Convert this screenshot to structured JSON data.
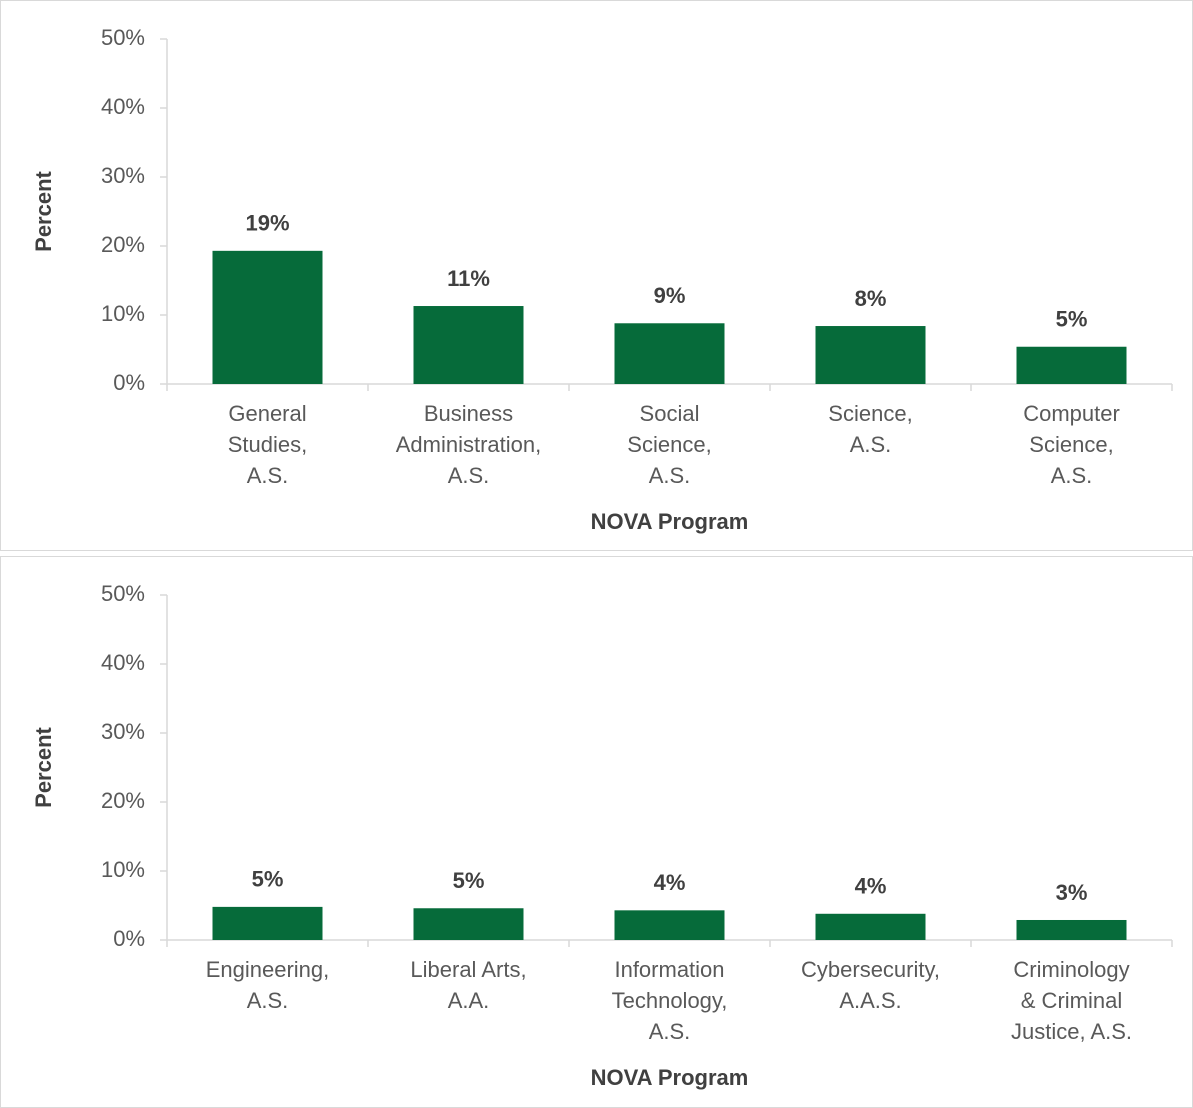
{
  "chart_data": [
    {
      "type": "bar",
      "categories": [
        "General\nStudies,\nA.S.",
        "Business\nAdministration,\nA.S.",
        "Social\nScience,\nA.S.",
        "Science,\nA.S.",
        "Computer\nScience,\nA.S."
      ],
      "values": [
        19.3,
        11.3,
        8.8,
        8.4,
        5.4
      ],
      "value_labels": [
        "19%",
        "11%",
        "9%",
        "8%",
        "5%"
      ],
      "color": "#066b3a",
      "ylim": [
        0,
        50
      ],
      "yticks": [
        {
          "value": 0,
          "label": "0%"
        },
        {
          "value": 10,
          "label": "10%"
        },
        {
          "value": 20,
          "label": "20%"
        },
        {
          "value": 30,
          "label": "30%"
        },
        {
          "value": 40,
          "label": "40%"
        },
        {
          "value": 50,
          "label": "50%"
        }
      ],
      "grid": false,
      "x_label": "NOVA Program",
      "y_label": "Percent"
    },
    {
      "type": "bar",
      "categories": [
        "Engineering,\nA.S.",
        "Liberal Arts,\nA.A.",
        "Information\nTechnology,\nA.S.",
        "Cybersecurity,\nA.A.S.",
        "Criminology\n& Criminal\nJustice, A.S."
      ],
      "values": [
        4.8,
        4.6,
        4.3,
        3.8,
        2.9
      ],
      "value_labels": [
        "5%",
        "5%",
        "4%",
        "4%",
        "3%"
      ],
      "color": "#066b3a",
      "ylim": [
        0,
        50
      ],
      "yticks": [
        {
          "value": 0,
          "label": "0%"
        },
        {
          "value": 10,
          "label": "10%"
        },
        {
          "value": 20,
          "label": "20%"
        },
        {
          "value": 30,
          "label": "30%"
        },
        {
          "value": 40,
          "label": "40%"
        },
        {
          "value": 50,
          "label": "50%"
        }
      ],
      "grid": false,
      "x_label": "NOVA Program",
      "y_label": "Percent"
    }
  ]
}
